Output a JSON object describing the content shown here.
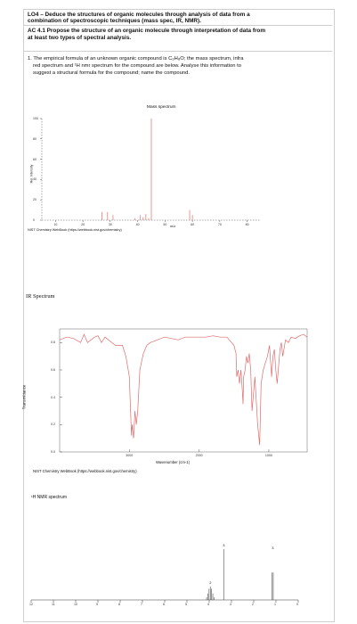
{
  "header": {
    "line1": "LO4 – Deduce the structures of organic molecules through analysis of data from a",
    "line2": "combination of spectroscopic techniques (mass spec, IR, NMR).",
    "line3": "AC 4.1 Propose the structure of an organic molecule through interpretation of data from",
    "line4": "at least two types of spectral analysis."
  },
  "question": {
    "line1": "1. The empirical formula of an unknown organic compound is C₃H₈O; the mass spectrum, infra",
    "line2": "red spectrum and ¹H nmr spectrum for the compound are below. Analyse this information to",
    "line3": "suggest a structural formula for the compound; name the compound."
  },
  "chart_data": [
    {
      "type": "bar",
      "title": "Mass spectrum",
      "xlabel": "m/z",
      "ylabel": "Rel. Intensity",
      "xlim": [
        5,
        85
      ],
      "ylim": [
        0,
        100
      ],
      "xticks": [
        "10",
        "20",
        "30",
        "40",
        "50",
        "60",
        "70",
        "80"
      ],
      "yticks": [
        "100",
        "80",
        "60",
        "40",
        "20",
        "0"
      ],
      "series": [
        {
          "x": [
            27,
            29,
            31,
            39,
            41,
            42,
            43,
            44,
            45,
            59,
            60
          ],
          "values": [
            8,
            8,
            5,
            2,
            5,
            3,
            6,
            2,
            100,
            10,
            5
          ]
        }
      ],
      "source": "NIST Chemistry WebBook (https://webbook.nist.gov/chemistry)",
      "color": "#e06c6c"
    },
    {
      "type": "line",
      "title": "IR Spectrum",
      "xlabel": "Wavenumber (cm-1)",
      "ylabel": "Transmittance",
      "xlim": [
        4000,
        450
      ],
      "ylim": [
        0,
        0.9
      ],
      "xticks": [
        "3000",
        "2000",
        "1000"
      ],
      "yticks": [
        "0.8",
        "0.6",
        "0.4",
        "0.2",
        "0.0"
      ],
      "series": [
        {
          "x": [
            4000,
            3900,
            3800,
            3700,
            3650,
            3600,
            3500,
            3450,
            3400,
            3350,
            3300,
            3200,
            3100,
            3050,
            3000,
            2990,
            2970,
            2960,
            2940,
            2920,
            2900,
            2880,
            2850,
            2800,
            2750,
            2700,
            2600,
            2500,
            2400,
            2300,
            2200,
            2100,
            2000,
            1900,
            1800,
            1700,
            1600,
            1500,
            1470,
            1460,
            1440,
            1420,
            1400,
            1380,
            1370,
            1360,
            1340,
            1320,
            1300,
            1280,
            1260,
            1240,
            1200,
            1160,
            1130,
            1110,
            1080,
            1050,
            1020,
            990,
            960,
            940,
            920,
            900,
            880,
            840,
            820,
            800,
            760,
            720,
            680,
            620,
            560,
            500,
            450
          ],
          "values": [
            0.82,
            0.84,
            0.83,
            0.8,
            0.86,
            0.8,
            0.84,
            0.85,
            0.8,
            0.84,
            0.82,
            0.78,
            0.78,
            0.7,
            0.55,
            0.4,
            0.12,
            0.2,
            0.1,
            0.3,
            0.2,
            0.3,
            0.6,
            0.72,
            0.78,
            0.8,
            0.82,
            0.84,
            0.83,
            0.82,
            0.84,
            0.84,
            0.84,
            0.84,
            0.85,
            0.84,
            0.84,
            0.78,
            0.72,
            0.55,
            0.6,
            0.5,
            0.6,
            0.45,
            0.35,
            0.55,
            0.6,
            0.7,
            0.65,
            0.72,
            0.6,
            0.3,
            0.55,
            0.2,
            0.05,
            0.5,
            0.6,
            0.65,
            0.7,
            0.78,
            0.55,
            0.7,
            0.75,
            0.6,
            0.5,
            0.75,
            0.8,
            0.7,
            0.82,
            0.8,
            0.84,
            0.83,
            0.85,
            0.86,
            0.84
          ]
        }
      ],
      "source": "NIST Chemistry WebBook (https://webbook.nist.gov/chemistry)",
      "color": "#e06c6c"
    },
    {
      "type": "line",
      "title": "¹H NMR spectrum",
      "xlim": [
        12,
        0
      ],
      "xticks": [
        "12",
        "11",
        "10",
        "9",
        "8",
        "7",
        "6",
        "5",
        "4",
        "3",
        "2",
        "1",
        "0"
      ],
      "annotations": [
        "3",
        "2",
        "3"
      ],
      "series": [
        {
          "peaks": [
            {
              "ppm": 3.95,
              "height": 0.25,
              "label": "2",
              "mult": 7
            },
            {
              "ppm": 3.35,
              "height": 0.95,
              "label": "3",
              "mult": 1
            },
            {
              "ppm": 1.15,
              "height": 0.9,
              "label": "3",
              "mult": 2
            }
          ]
        }
      ],
      "color": "#4a4a4a"
    }
  ]
}
